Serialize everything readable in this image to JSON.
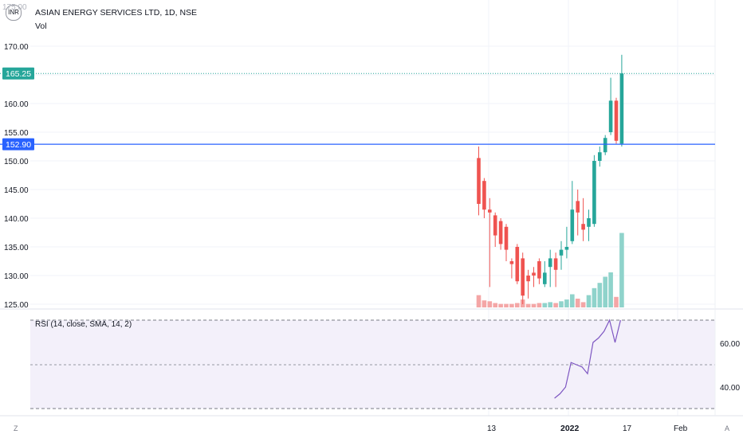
{
  "header": {
    "currency": "INR",
    "title": "ASIAN ENERGY SERVICES LTD, 1D, NSE",
    "volume_label": "Vol",
    "partial_top_label": "175.00"
  },
  "price_scale": {
    "labels": [
      "170.00",
      "165.00",
      "160.00",
      "155.00",
      "150.00",
      "145.00",
      "140.00",
      "135.00",
      "130.00",
      "125.00"
    ],
    "last_price_badge": "165.25",
    "hline_badge": "152.90",
    "hline_value": 152.9,
    "last_price_value": 165.25
  },
  "rsi_pane": {
    "title": "RSI (14, close, SMA, 14, 2)",
    "labels": [
      "60.00",
      "40.00"
    ],
    "upper_band": 70,
    "middle_band": 50,
    "lower_band": 30
  },
  "time_axis": {
    "labels": [
      "13",
      "2022",
      "17",
      "Feb"
    ]
  },
  "corner_buttons": {
    "left": "Z",
    "right": "A"
  },
  "colors": {
    "up": "#26a69a",
    "down": "#ef5350",
    "up_volume": "#8fd3cb",
    "down_volume": "#f4a6a6",
    "hline": "#2962ff",
    "rsi_line": "#7e57c2",
    "rsi_band": "#f3f0fa"
  },
  "chart_data": {
    "type": "candlestick",
    "title": "ASIAN ENERGY SERVICES LTD, 1D, NSE",
    "ylim": [
      124,
      176
    ],
    "candles": [
      {
        "o": 150.5,
        "h": 152.5,
        "l": 140.5,
        "c": 142.5,
        "v": 1.4
      },
      {
        "o": 146.5,
        "h": 147.0,
        "l": 140.0,
        "c": 141.5,
        "v": 0.8
      },
      {
        "o": 141.5,
        "h": 143.5,
        "l": 128.0,
        "c": 141.0,
        "v": 0.7
      },
      {
        "o": 140.5,
        "h": 141.0,
        "l": 135.0,
        "c": 137.0,
        "v": 0.5
      },
      {
        "o": 139.5,
        "h": 140.0,
        "l": 134.5,
        "c": 135.5,
        "v": 0.4
      },
      {
        "o": 138.5,
        "h": 139.0,
        "l": 132.5,
        "c": 134.5,
        "v": 0.4
      },
      {
        "o": 132.5,
        "h": 133.0,
        "l": 129.5,
        "c": 132.0,
        "v": 0.4
      },
      {
        "o": 135.0,
        "h": 135.5,
        "l": 128.5,
        "c": 129.0,
        "v": 0.5
      },
      {
        "o": 133.0,
        "h": 134.0,
        "l": 125.0,
        "c": 126.5,
        "v": 0.9
      },
      {
        "o": 130.0,
        "h": 131.0,
        "l": 126.0,
        "c": 129.0,
        "v": 0.4
      },
      {
        "o": 130.5,
        "h": 131.5,
        "l": 128.0,
        "c": 130.0,
        "v": 0.4
      },
      {
        "o": 132.5,
        "h": 133.0,
        "l": 128.5,
        "c": 129.5,
        "v": 0.5
      },
      {
        "o": 128.5,
        "h": 132.5,
        "l": 128.0,
        "c": 130.5,
        "v": 0.5
      },
      {
        "o": 131.5,
        "h": 134.5,
        "l": 128.0,
        "c": 133.0,
        "v": 0.6
      },
      {
        "o": 133.0,
        "h": 134.0,
        "l": 128.0,
        "c": 131.0,
        "v": 0.5
      },
      {
        "o": 133.5,
        "h": 136.0,
        "l": 131.0,
        "c": 134.5,
        "v": 0.7
      },
      {
        "o": 134.5,
        "h": 138.5,
        "l": 133.0,
        "c": 135.0,
        "v": 0.9
      },
      {
        "o": 136.0,
        "h": 146.5,
        "l": 135.5,
        "c": 141.5,
        "v": 1.5
      },
      {
        "o": 143.0,
        "h": 145.0,
        "l": 137.0,
        "c": 141.0,
        "v": 1.0
      },
      {
        "o": 139.0,
        "h": 143.5,
        "l": 136.0,
        "c": 138.0,
        "v": 0.6
      },
      {
        "o": 138.5,
        "h": 141.5,
        "l": 136.0,
        "c": 140.0,
        "v": 1.4
      },
      {
        "o": 139.0,
        "h": 151.0,
        "l": 138.5,
        "c": 150.0,
        "v": 2.2
      },
      {
        "o": 150.0,
        "h": 152.5,
        "l": 149.0,
        "c": 151.5,
        "v": 2.8
      },
      {
        "o": 151.5,
        "h": 154.5,
        "l": 151.0,
        "c": 154.0,
        "v": 3.5
      },
      {
        "o": 155.0,
        "h": 164.5,
        "l": 154.5,
        "c": 160.5,
        "v": 4.0
      },
      {
        "o": 160.5,
        "h": 161.0,
        "l": 153.0,
        "c": 153.5,
        "v": 1.2
      },
      {
        "o": 153.0,
        "h": 168.5,
        "l": 152.5,
        "c": 165.25,
        "v": 8.5
      }
    ],
    "horizontal_line": 152.9,
    "rsi": {
      "ylim": [
        26,
        73
      ],
      "values": [
        35,
        37,
        40,
        51,
        50,
        49,
        46,
        60,
        62,
        65,
        70,
        60,
        70
      ],
      "start_index": 14
    },
    "time_labels": [
      "13",
      "2022",
      "17",
      "Feb"
    ]
  }
}
